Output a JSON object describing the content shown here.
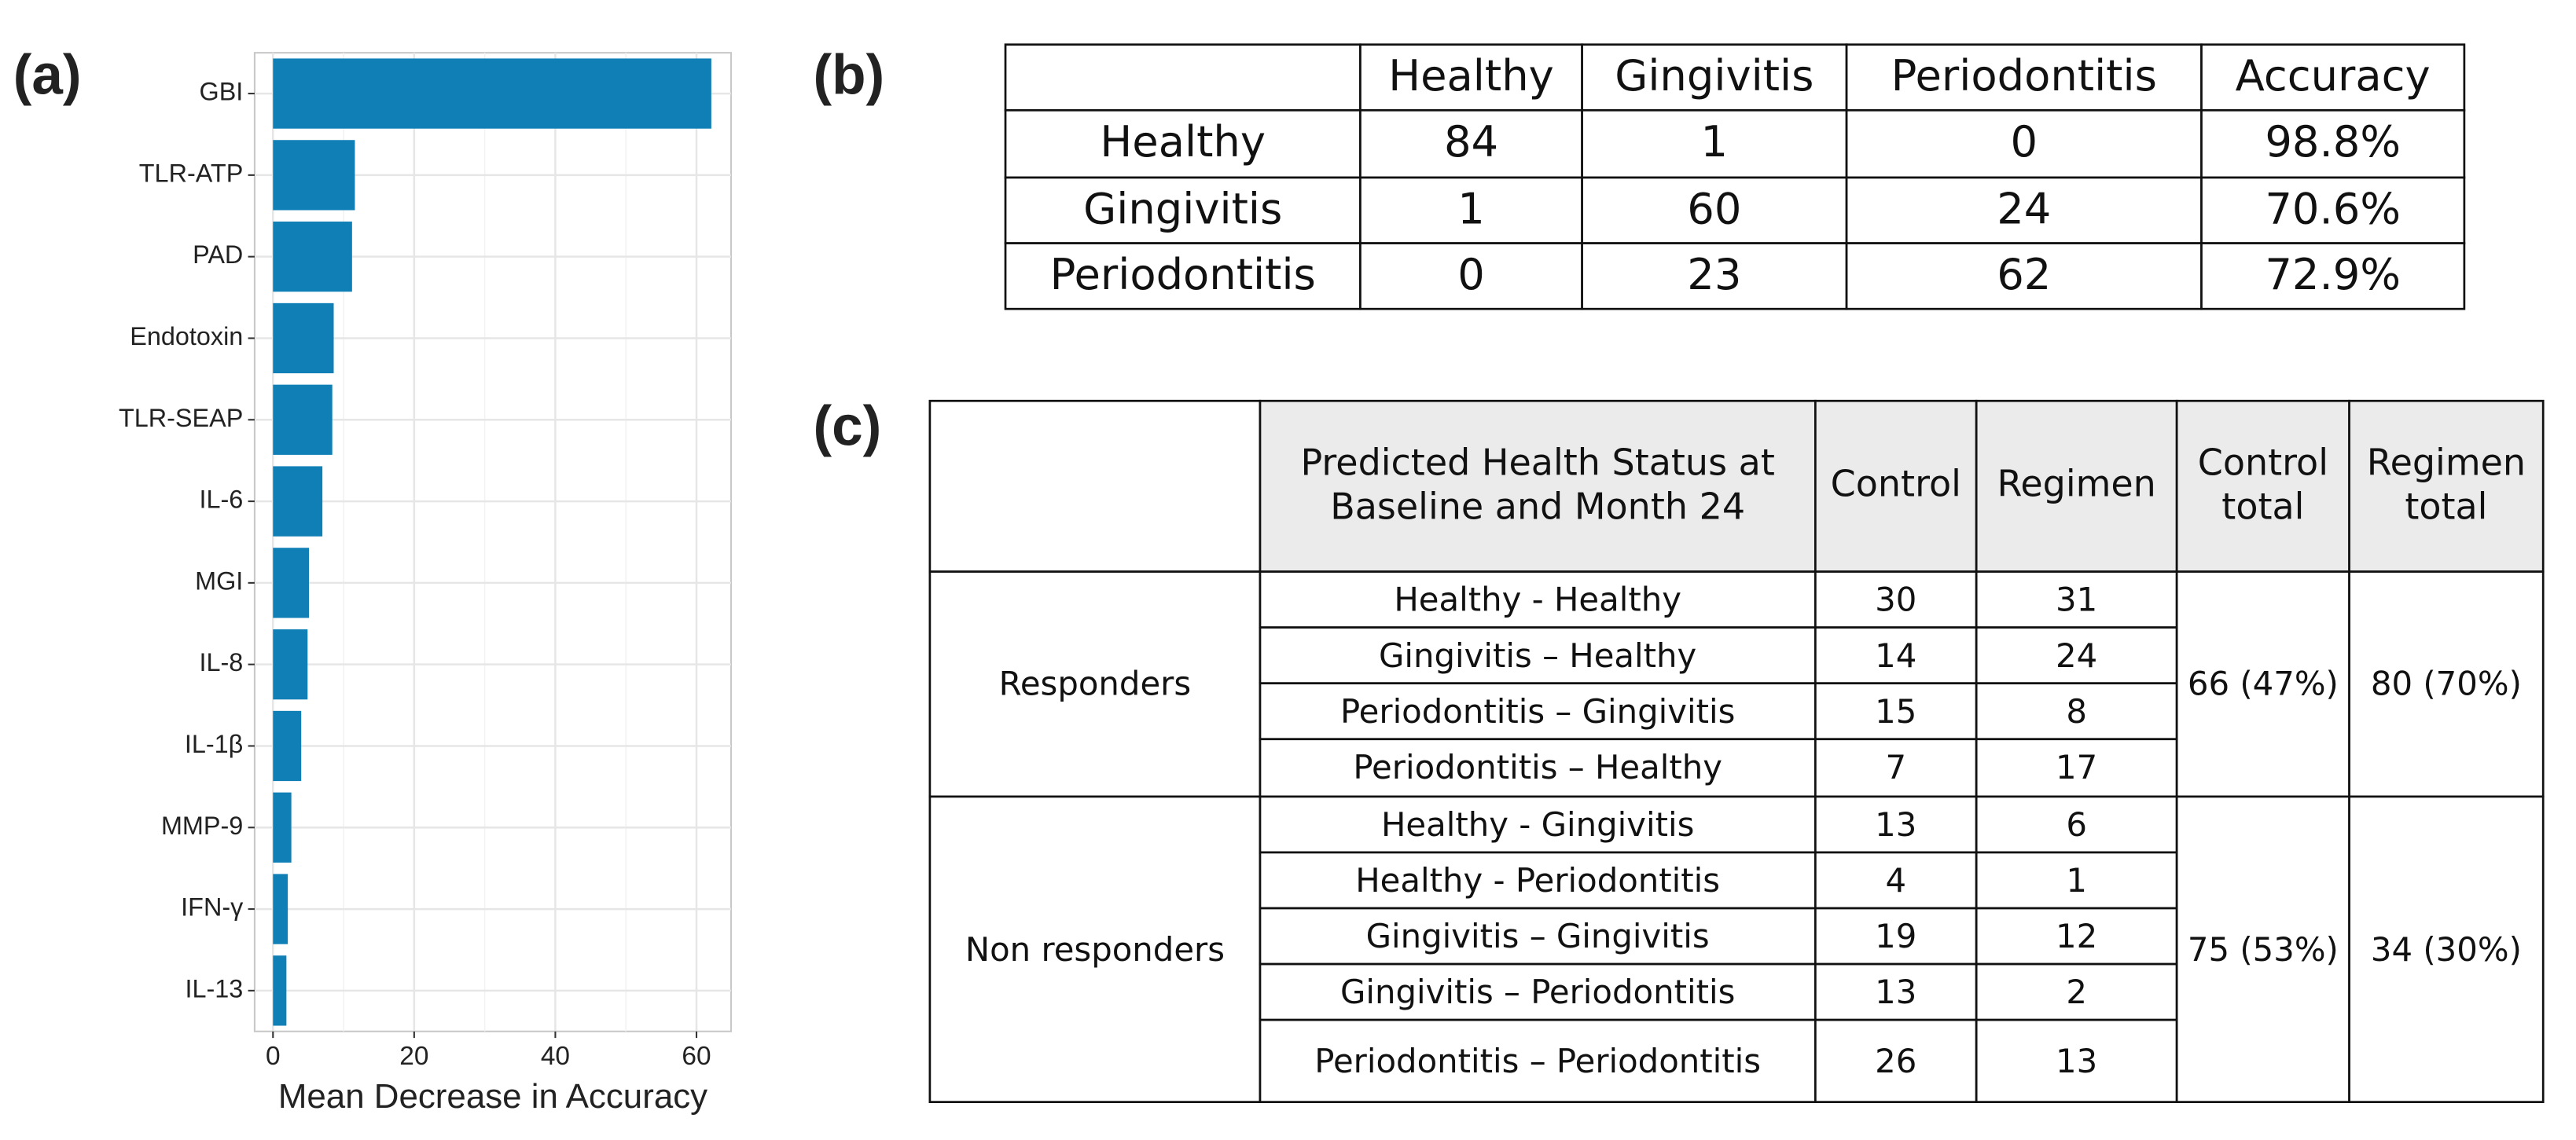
{
  "panel_labels": [
    "(a)",
    "(b)",
    "(c)"
  ],
  "chart_data": {
    "type": "hbar",
    "x_label": "Mean Decrease in Accuracy",
    "categories": [
      "GBI",
      "TLR-ATP",
      "PAD",
      "Endotoxin",
      "TLR-SEAP",
      "IL-6",
      "MGI",
      "IL-8",
      "IL-1β",
      "MMP-9",
      "IFN-γ",
      "IL-13"
    ],
    "values": [
      62.1,
      11.6,
      11.2,
      8.6,
      8.4,
      7.0,
      5.1,
      4.9,
      4.0,
      2.6,
      2.1,
      1.9
    ],
    "color": "#0f7fb6",
    "xlim": [
      -2.6,
      64.9
    ],
    "xticks": [
      0,
      20,
      40,
      60
    ],
    "grid": true
  },
  "table_b": {
    "header": [
      "Healthy",
      "Gingivitis",
      "Periodontitis",
      "Accuracy"
    ],
    "rows": [
      {
        "label": "Healthy",
        "values": [
          84,
          1,
          0
        ],
        "accuracy": "98.8%"
      },
      {
        "label": "Gingivitis",
        "values": [
          1,
          60,
          24
        ],
        "accuracy": "70.6%"
      },
      {
        "label": "Periodontitis",
        "values": [
          0,
          23,
          62
        ],
        "accuracy": "72.9%"
      }
    ]
  },
  "table_c": {
    "header": [
      "Predicted Health Status at Baseline and Month 24",
      "Control",
      "Regimen",
      "Control total",
      "Regimen total"
    ],
    "groups": [
      {
        "name": "Responders",
        "control_total": "66 (47%)",
        "regimen_total": "80 (70%)",
        "rows": [
          [
            "Healthy - Healthy",
            30,
            31
          ],
          [
            "Gingivitis – Healthy",
            14,
            24
          ],
          [
            "Periodontitis – Gingivitis",
            15,
            8
          ],
          [
            "Periodontitis – Healthy",
            7,
            17
          ]
        ]
      },
      {
        "name": "Non responders",
        "control_total": "75 (53%)",
        "regimen_total": "34 (30%)",
        "rows": [
          [
            "Healthy - Gingivitis",
            13,
            6
          ],
          [
            "Healthy - Periodontitis",
            4,
            1
          ],
          [
            "Gingivitis – Gingivitis",
            19,
            12
          ],
          [
            "Gingivitis – Periodontitis",
            13,
            2
          ],
          [
            "Periodontitis – Periodontitis",
            26,
            13
          ]
        ]
      }
    ]
  }
}
